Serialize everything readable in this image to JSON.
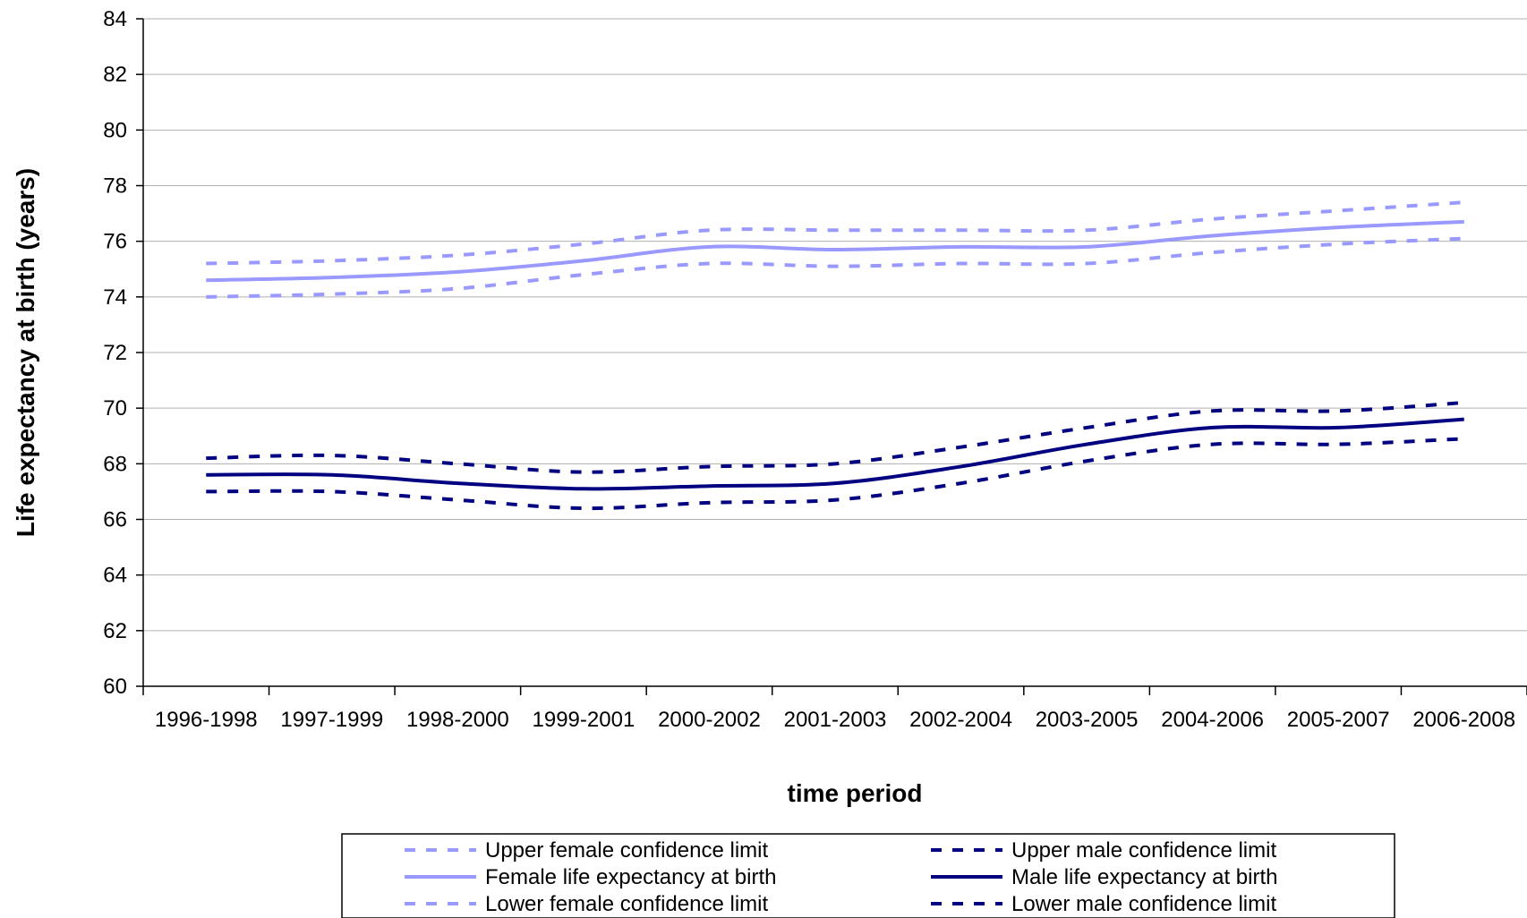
{
  "chart_data": {
    "type": "line",
    "title": "",
    "xlabel": "time period",
    "ylabel": "Life expectancy at birth (years)",
    "ylim": [
      60,
      84
    ],
    "yticks": [
      60,
      62,
      64,
      66,
      68,
      70,
      72,
      74,
      76,
      78,
      80,
      82,
      84
    ],
    "grid": true,
    "legend_position": "bottom",
    "categories": [
      "1996-1998",
      "1997-1999",
      "1998-2000",
      "1999-2001",
      "2000-2002",
      "2001-2003",
      "2002-2004",
      "2003-2005",
      "2004-2006",
      "2005-2007",
      "2006-2008"
    ],
    "series": [
      {
        "name": "Upper female confidence limit",
        "color": "#9999ff",
        "style": "dashed",
        "values": [
          75.2,
          75.3,
          75.5,
          75.9,
          76.4,
          76.4,
          76.4,
          76.4,
          76.8,
          77.1,
          77.4
        ]
      },
      {
        "name": "Female life expectancy at birth",
        "color": "#9999ff",
        "style": "solid",
        "values": [
          74.6,
          74.7,
          74.9,
          75.3,
          75.8,
          75.7,
          75.8,
          75.8,
          76.2,
          76.5,
          76.7
        ]
      },
      {
        "name": "Lower female confidence limit",
        "color": "#9999ff",
        "style": "dashed",
        "values": [
          74.0,
          74.1,
          74.3,
          74.8,
          75.2,
          75.1,
          75.2,
          75.2,
          75.6,
          75.9,
          76.1
        ]
      },
      {
        "name": "Upper male confidence limit",
        "color": "#000080",
        "style": "dashed",
        "values": [
          68.2,
          68.3,
          68.0,
          67.7,
          67.9,
          68.0,
          68.6,
          69.3,
          69.9,
          69.9,
          70.2
        ]
      },
      {
        "name": "Male life expectancy at birth",
        "color": "#000080",
        "style": "solid",
        "values": [
          67.6,
          67.6,
          67.3,
          67.1,
          67.2,
          67.3,
          67.9,
          68.7,
          69.3,
          69.3,
          69.6
        ]
      },
      {
        "name": "Lower male confidence limit",
        "color": "#000080",
        "style": "dashed",
        "values": [
          67.0,
          67.0,
          66.7,
          66.4,
          66.6,
          66.7,
          67.3,
          68.1,
          68.7,
          68.7,
          68.9
        ]
      }
    ]
  }
}
